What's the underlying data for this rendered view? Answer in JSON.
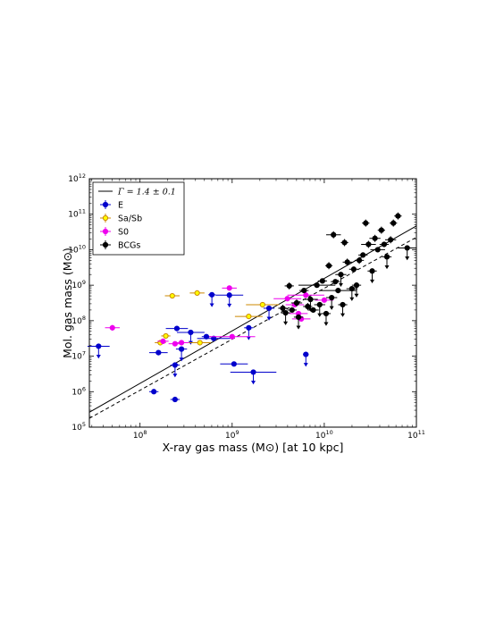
{
  "chart_data": {
    "type": "scatter",
    "xlabel": "X-ray gas mass (M⊙) [at 10 kpc]",
    "ylabel": "Mol. gas mass (M⊙)",
    "xlim_log10": [
      7.45,
      11.0
    ],
    "ylim_log10": [
      5.0,
      12.0
    ],
    "x_scale": "log",
    "y_scale": "log",
    "x_ticks": [
      {
        "value_log10": 8,
        "label": "10^8"
      },
      {
        "value_log10": 9,
        "label": "10^9"
      },
      {
        "value_log10": 10,
        "label": "10^10"
      },
      {
        "value_log10": 11,
        "label": "10^11"
      }
    ],
    "y_ticks": [
      {
        "value_log10": 5,
        "label": "10^5"
      },
      {
        "value_log10": 6,
        "label": "10^6"
      },
      {
        "value_log10": 7,
        "label": "10^7"
      },
      {
        "value_log10": 8,
        "label": "10^8"
      },
      {
        "value_log10": 9,
        "label": "10^9"
      },
      {
        "value_log10": 10,
        "label": "10^10"
      },
      {
        "value_log10": 11,
        "label": "10^11"
      },
      {
        "value_log10": 12,
        "label": "10^12"
      }
    ],
    "legend_position": "top-left",
    "fit_lines": [
      {
        "label": "Γ = 1.4 ± 0.1",
        "style": "solid",
        "x_log10": [
          7.45,
          11.0
        ],
        "y_log10": [
          5.42,
          10.67
        ]
      },
      {
        "label": "",
        "style": "dashed",
        "x_log10": [
          7.45,
          11.0
        ],
        "y_log10": [
          5.25,
          10.35
        ]
      }
    ],
    "series": [
      {
        "name": "E",
        "color": "#0000cc",
        "marker": "circle",
        "points": [
          {
            "x": 7.55,
            "y": 7.28,
            "xerr": 0.12,
            "upper_limit": true
          },
          {
            "x": 8.15,
            "y": 6.0,
            "xerr": 0.05
          },
          {
            "x": 8.2,
            "y": 7.1,
            "xerr": 0.1
          },
          {
            "x": 8.38,
            "y": 5.78,
            "xerr": 0.05
          },
          {
            "x": 8.38,
            "y": 6.75,
            "xerr": 0.05,
            "upper_limit": true
          },
          {
            "x": 8.4,
            "y": 7.78,
            "xerr": 0.12
          },
          {
            "x": 8.45,
            "y": 7.2,
            "xerr": 0.06,
            "upper_limit": true
          },
          {
            "x": 8.55,
            "y": 7.67,
            "xerr": 0.15,
            "upper_limit": true
          },
          {
            "x": 8.72,
            "y": 7.55,
            "xerr": 0.05
          },
          {
            "x": 8.78,
            "y": 8.73,
            "xerr": 0.04,
            "upper_limit": true
          },
          {
            "x": 8.8,
            "y": 7.5,
            "xerr": 0.18
          },
          {
            "x": 8.97,
            "y": 8.72,
            "xerr": 0.15,
            "upper_limit": true
          },
          {
            "x": 9.02,
            "y": 6.78,
            "xerr": 0.15
          },
          {
            "x": 9.18,
            "y": 7.8,
            "xerr": 0.05,
            "upper_limit": true
          },
          {
            "x": 9.23,
            "y": 6.55,
            "xerr": 0.25,
            "upper_limit": true
          },
          {
            "x": 9.4,
            "y": 8.35,
            "xerr": 0.06,
            "upper_limit": true
          },
          {
            "x": 9.8,
            "y": 7.05,
            "xerr": 0.03,
            "upper_limit": true
          }
        ]
      },
      {
        "name": "Sa/Sb",
        "color": "#ffff00",
        "edge_color": "#cc8800",
        "marker": "circle",
        "points": [
          {
            "x": 8.22,
            "y": 7.38,
            "xerr": 0.06
          },
          {
            "x": 8.28,
            "y": 7.57,
            "xerr": 0.05
          },
          {
            "x": 8.35,
            "y": 8.7,
            "xerr": 0.08
          },
          {
            "x": 8.62,
            "y": 8.78,
            "xerr": 0.08
          },
          {
            "x": 8.65,
            "y": 7.38,
            "xerr": 0.12
          },
          {
            "x": 9.18,
            "y": 8.12,
            "xerr": 0.15
          },
          {
            "x": 9.33,
            "y": 8.45,
            "xerr": 0.18
          }
        ]
      },
      {
        "name": "S0",
        "color": "#ee00ee",
        "marker": "circle",
        "points": [
          {
            "x": 7.7,
            "y": 7.8,
            "xerr": 0.08,
            "yerr": 0.08
          },
          {
            "x": 8.25,
            "y": 7.42,
            "xerr": 0.06
          },
          {
            "x": 8.38,
            "y": 7.35,
            "xerr": 0.07
          },
          {
            "x": 8.45,
            "y": 7.38,
            "xerr": 0.08
          },
          {
            "x": 8.97,
            "y": 8.92,
            "xerr": 0.08
          },
          {
            "x": 9.0,
            "y": 7.55,
            "xerr": 0.25
          },
          {
            "x": 9.6,
            "y": 8.62,
            "xerr": 0.15
          },
          {
            "x": 9.68,
            "y": 8.45,
            "xerr": 0.1
          },
          {
            "x": 9.72,
            "y": 8.2,
            "xerr": 0.1
          },
          {
            "x": 9.75,
            "y": 8.05,
            "xerr": 0.1
          },
          {
            "x": 9.8,
            "y": 8.72,
            "xerr": 0.2
          },
          {
            "x": 10.0,
            "y": 8.58,
            "xerr": 0.1
          }
        ]
      },
      {
        "name": "BCGs",
        "color": "#000000",
        "marker": "circle",
        "points": [
          {
            "x": 9.55,
            "y": 8.35,
            "xerr": 0.05,
            "yerr": 0.1
          },
          {
            "x": 9.58,
            "y": 8.22,
            "xerr": 0.05,
            "upper_limit": true
          },
          {
            "x": 9.62,
            "y": 8.98,
            "xerr": 0.05,
            "yerr": 0.1
          },
          {
            "x": 9.65,
            "y": 8.3,
            "xerr": 0.05
          },
          {
            "x": 9.7,
            "y": 8.5,
            "xerr": 0.06,
            "yerr": 0.1
          },
          {
            "x": 9.72,
            "y": 8.1,
            "xerr": 0.05,
            "upper_limit": true
          },
          {
            "x": 9.78,
            "y": 8.85,
            "xerr": 0.05
          },
          {
            "x": 9.82,
            "y": 8.4,
            "xerr": 0.05,
            "yerr": 0.1
          },
          {
            "x": 9.85,
            "y": 8.6,
            "xerr": 0.08,
            "upper_limit": true
          },
          {
            "x": 9.88,
            "y": 8.3,
            "xerr": 0.06
          },
          {
            "x": 9.92,
            "y": 9.0,
            "xerr": 0.2
          },
          {
            "x": 9.95,
            "y": 8.45,
            "xerr": 0.06,
            "upper_limit": true
          },
          {
            "x": 9.98,
            "y": 9.12,
            "xerr": 0.05
          },
          {
            "x": 10.02,
            "y": 8.2,
            "xerr": 0.05,
            "upper_limit": true
          },
          {
            "x": 10.05,
            "y": 9.55,
            "xerr": 0.04,
            "yerr": 0.1
          },
          {
            "x": 10.08,
            "y": 8.65,
            "xerr": 0.06,
            "upper_limit": true
          },
          {
            "x": 10.1,
            "y": 10.42,
            "xerr": 0.08,
            "yerr": 0.1
          },
          {
            "x": 10.12,
            "y": 9.1,
            "xerr": 0.05
          },
          {
            "x": 10.15,
            "y": 8.85,
            "xerr": 0.2
          },
          {
            "x": 10.18,
            "y": 9.3,
            "xerr": 0.06,
            "upper_limit": true
          },
          {
            "x": 10.2,
            "y": 8.45,
            "xerr": 0.05,
            "upper_limit": true
          },
          {
            "x": 10.22,
            "y": 10.2,
            "xerr": 0.04,
            "yerr": 0.1
          },
          {
            "x": 10.25,
            "y": 9.65,
            "xerr": 0.05,
            "yerr": 0.1
          },
          {
            "x": 10.3,
            "y": 8.9,
            "xerr": 0.06,
            "upper_limit": true
          },
          {
            "x": 10.32,
            "y": 9.45,
            "xerr": 0.05
          },
          {
            "x": 10.35,
            "y": 9.0,
            "xerr": 0.05,
            "upper_limit": true
          },
          {
            "x": 10.38,
            "y": 9.7,
            "xerr": 0.05,
            "yerr": 0.1
          },
          {
            "x": 10.42,
            "y": 9.85,
            "xerr": 0.05
          },
          {
            "x": 10.45,
            "y": 10.75,
            "xerr": 0.04,
            "yerr": 0.1
          },
          {
            "x": 10.48,
            "y": 10.15,
            "xerr": 0.08,
            "yerr": 0.1
          },
          {
            "x": 10.52,
            "y": 9.4,
            "xerr": 0.05,
            "upper_limit": true
          },
          {
            "x": 10.55,
            "y": 10.32,
            "xerr": 0.06,
            "yerr": 0.1
          },
          {
            "x": 10.58,
            "y": 10.0,
            "xerr": 0.08
          },
          {
            "x": 10.62,
            "y": 10.55,
            "xerr": 0.04,
            "yerr": 0.1
          },
          {
            "x": 10.65,
            "y": 10.15,
            "xerr": 0.05
          },
          {
            "x": 10.68,
            "y": 9.8,
            "xerr": 0.05,
            "upper_limit": true
          },
          {
            "x": 10.72,
            "y": 10.28,
            "xerr": 0.06,
            "yerr": 0.1
          },
          {
            "x": 10.75,
            "y": 10.75,
            "xerr": 0.04,
            "yerr": 0.1
          },
          {
            "x": 10.8,
            "y": 10.95,
            "xerr": 0.04,
            "yerr": 0.1
          },
          {
            "x": 10.9,
            "y": 10.05,
            "xerr": 0.1,
            "upper_limit": true
          }
        ]
      }
    ]
  },
  "legend": {
    "entries": [
      {
        "label": "Γ = 1.4 ± 0.1",
        "kind": "line",
        "color": "#000000",
        "edge_color": "#000000"
      },
      {
        "label": "E",
        "kind": "marker",
        "color": "#0000cc",
        "edge_color": "#0000cc"
      },
      {
        "label": "Sa/Sb",
        "kind": "marker",
        "color": "#ffff00",
        "edge_color": "#cc8800"
      },
      {
        "label": "S0",
        "kind": "marker",
        "color": "#ee00ee",
        "edge_color": "#ee00ee"
      },
      {
        "label": "BCGs",
        "kind": "marker",
        "color": "#000000",
        "edge_color": "#000000"
      }
    ]
  }
}
